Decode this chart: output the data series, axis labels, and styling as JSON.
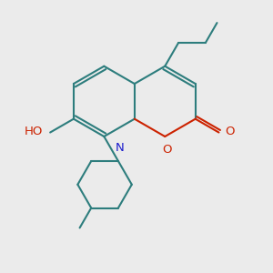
{
  "bg_color": "#ebebeb",
  "bc": "#2d7d7d",
  "red": "#cc2200",
  "blue": "#1a1acc",
  "lw": 1.5,
  "figsize": [
    3.0,
    3.0
  ],
  "dpi": 100,
  "xlim": [
    -1.0,
    9.0
  ],
  "ylim": [
    -1.5,
    8.5
  ]
}
